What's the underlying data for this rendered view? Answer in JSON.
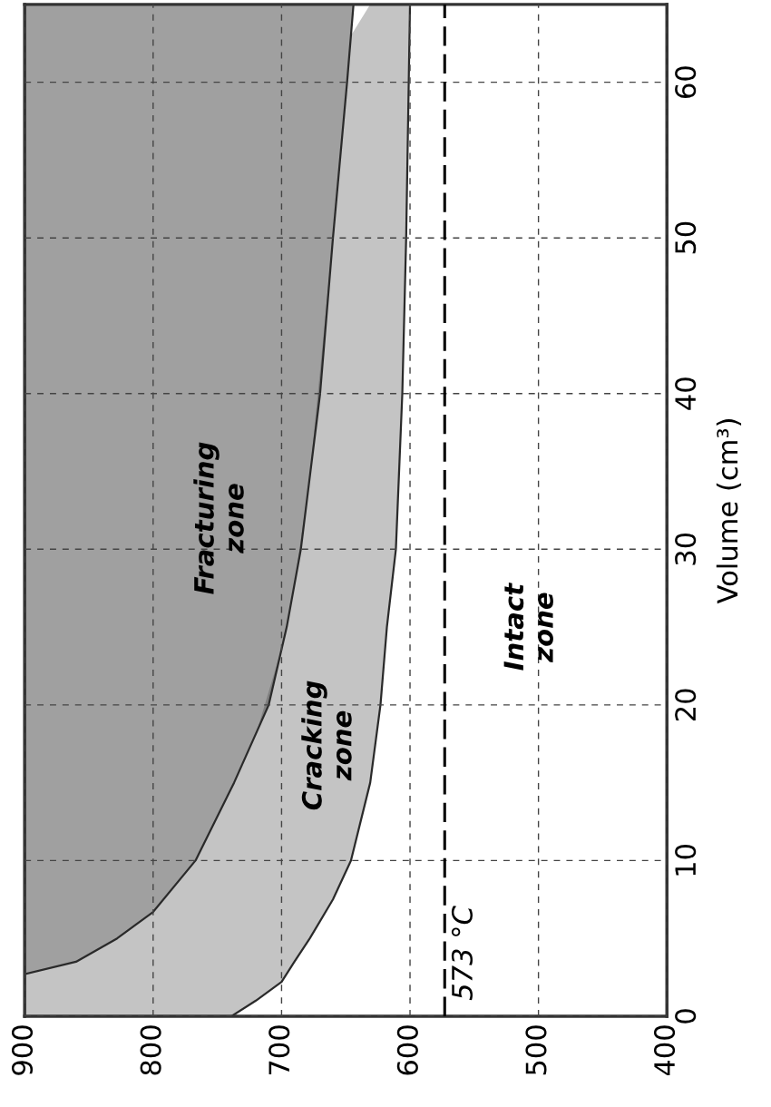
{
  "chart_data": {
    "type": "line",
    "ylabel": "Volume (cm³)",
    "xlim": [
      900,
      400
    ],
    "xticks": [
      400,
      500,
      600,
      700,
      800,
      900
    ],
    "ylim": [
      0,
      65
    ],
    "yticks": [
      0,
      10,
      20,
      30,
      40,
      50,
      60
    ],
    "grid": true,
    "line_style": "solid",
    "series": [
      {
        "color": "#2a2a2a",
        "x": [
          900,
          860,
          828,
          800,
          767,
          739,
          720,
          700,
          690,
          678,
          660,
          646,
          631,
          623,
          618,
          611,
          606,
          603,
          601,
          600
        ],
        "values": [
          null,
          null,
          null,
          null,
          null,
          0,
          1,
          2.2,
          3.5,
          5,
          7.5,
          10,
          15,
          20,
          25,
          30,
          40,
          50,
          60,
          65
        ],
        "lower": [
          0,
          0,
          0,
          0,
          0,
          0,
          1,
          2.2,
          3.5,
          5,
          7.5,
          10,
          15,
          20,
          25,
          30,
          40,
          50,
          60,
          65
        ],
        "upper": [
          2.7,
          3.5,
          5,
          6.7,
          10,
          14.7,
          18.1,
          23.6,
          27.7,
          34.7,
          50,
          63,
          65,
          65,
          65,
          65,
          65,
          65,
          65,
          65
        ]
      },
      {
        "color": "#2a2a2a",
        "x": [
          900,
          860,
          828,
          800,
          767,
          737,
          710,
          696,
          685,
          670,
          660,
          649,
          644
        ],
        "values": [
          2.7,
          3.5,
          5,
          6.7,
          10,
          15,
          20,
          25,
          30,
          40,
          50,
          60,
          65
        ],
        "lower": [
          2.7,
          3.5,
          5,
          6.7,
          10,
          15,
          20,
          25,
          30,
          40,
          50,
          60,
          65
        ],
        "upper": [
          65,
          65,
          65,
          65,
          65,
          65,
          65,
          65,
          65,
          65,
          65,
          65,
          65
        ]
      }
    ],
    "ref_lines": [
      {
        "axis": "x",
        "value": 573,
        "label": "573 °C",
        "color": "#000000",
        "line_style": "dashed"
      }
    ],
    "annotations": [
      "Fracturing\nzone",
      "Cracking\nzone",
      "Intact\nzone"
    ]
  }
}
